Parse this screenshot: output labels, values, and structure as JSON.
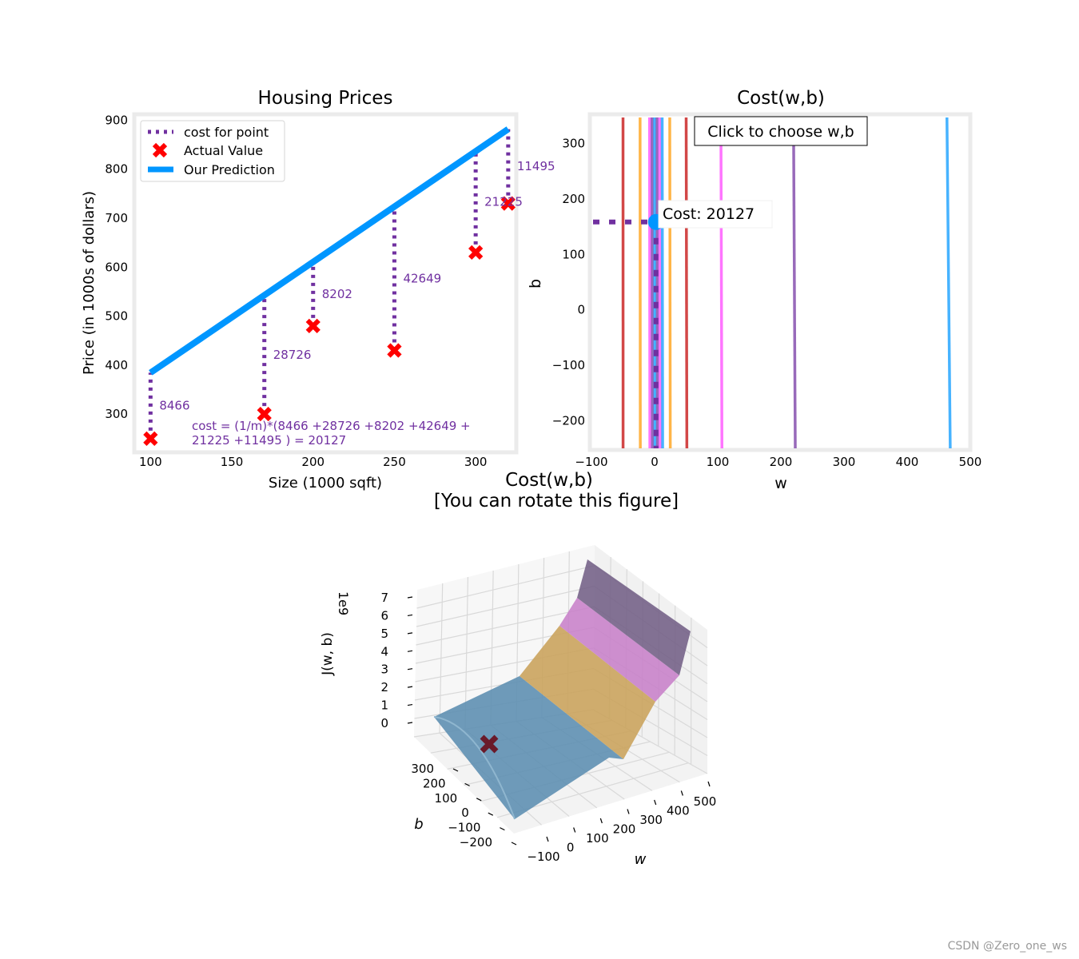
{
  "figure": {
    "watermark": "CSDN @Zero_one_ws"
  },
  "chart_data": [
    {
      "type": "scatter",
      "title": "Housing Prices",
      "xlabel": "Size (1000 sqft)",
      "ylabel": "Price (in 1000s of dollars)",
      "xlim": [
        90,
        325
      ],
      "ylim": [
        222,
        912
      ],
      "xticks": [
        100,
        150,
        200,
        250,
        300
      ],
      "yticks": [
        300,
        400,
        500,
        600,
        700,
        800,
        900
      ],
      "points": [
        {
          "x": 100,
          "y": 250,
          "cost_label": "8466"
        },
        {
          "x": 170,
          "y": 300,
          "cost_label": "28726"
        },
        {
          "x": 200,
          "y": 480,
          "cost_label": "8202"
        },
        {
          "x": 250,
          "y": 430,
          "cost_label": "42649"
        },
        {
          "x": 300,
          "y": 630,
          "cost_label": "21225"
        },
        {
          "x": 320,
          "y": 730,
          "cost_label": "11495"
        }
      ],
      "prediction": {
        "w": 2.26,
        "b": 158.5
      },
      "legend": [
        "cost for point",
        "Actual Value",
        "Our Prediction"
      ],
      "cost_formula_line1": "cost = (1/m)*(8466 +28726 +8202 +42649 +",
      "cost_formula_line2": "21225 +11495 ) = 20127",
      "colors": {
        "prediction": "#0096ff",
        "actual": "#ff0000",
        "cost": "#7030a0"
      }
    },
    {
      "type": "contour",
      "title": "Cost(w,b)",
      "xlabel": "w",
      "ylabel": "b",
      "xlim": [
        -100,
        500
      ],
      "ylim": [
        -250,
        350
      ],
      "xticks": [
        -100,
        0,
        100,
        200,
        300,
        400,
        500
      ],
      "yticks": [
        -200,
        -100,
        0,
        100,
        200,
        300
      ],
      "contour_w_levels": [
        {
          "w": -50,
          "color": "#c00000"
        },
        {
          "w": -23,
          "color": "#ff9900"
        },
        {
          "w": -8,
          "color": "#ff40ff"
        },
        {
          "w": -4,
          "color": "#7030a0"
        },
        {
          "w": 0,
          "color": "#0096ff"
        },
        {
          "w": 4,
          "color": "#7030a0"
        },
        {
          "w": 8,
          "color": "#ff40ff"
        },
        {
          "w": 12,
          "color": "#0096ff"
        },
        {
          "w": 24,
          "color": "#ff9900"
        },
        {
          "w": 50,
          "color": "#c00000"
        },
        {
          "w": 105,
          "color": "#ff40ff"
        },
        {
          "w": 220,
          "color": "#7030a0"
        },
        {
          "w": 463,
          "color": "#0096ff"
        }
      ],
      "selected": {
        "w": 2.26,
        "b": 158.5
      },
      "click_hint": "Click to choose w,b",
      "cost_annotation": "Cost: 20127"
    },
    {
      "type": "surface3d",
      "title_line1": "Cost(w,b)",
      "title_line2": "[You can rotate this figure]",
      "xlabel": "w",
      "ylabel": "b",
      "zlabel": "J(w, b)",
      "z_multiplier": "1e9",
      "w_ticks": [
        -100,
        0,
        100,
        200,
        300,
        400,
        500
      ],
      "b_ticks": [
        -200,
        -100,
        0,
        100,
        200,
        300
      ],
      "z_ticks": [
        0,
        1,
        2,
        3,
        4,
        5,
        6,
        7
      ],
      "color_bands": [
        "#5b8db0",
        "#c9a25a",
        "#c77dc8",
        "#6e5a82"
      ]
    }
  ]
}
